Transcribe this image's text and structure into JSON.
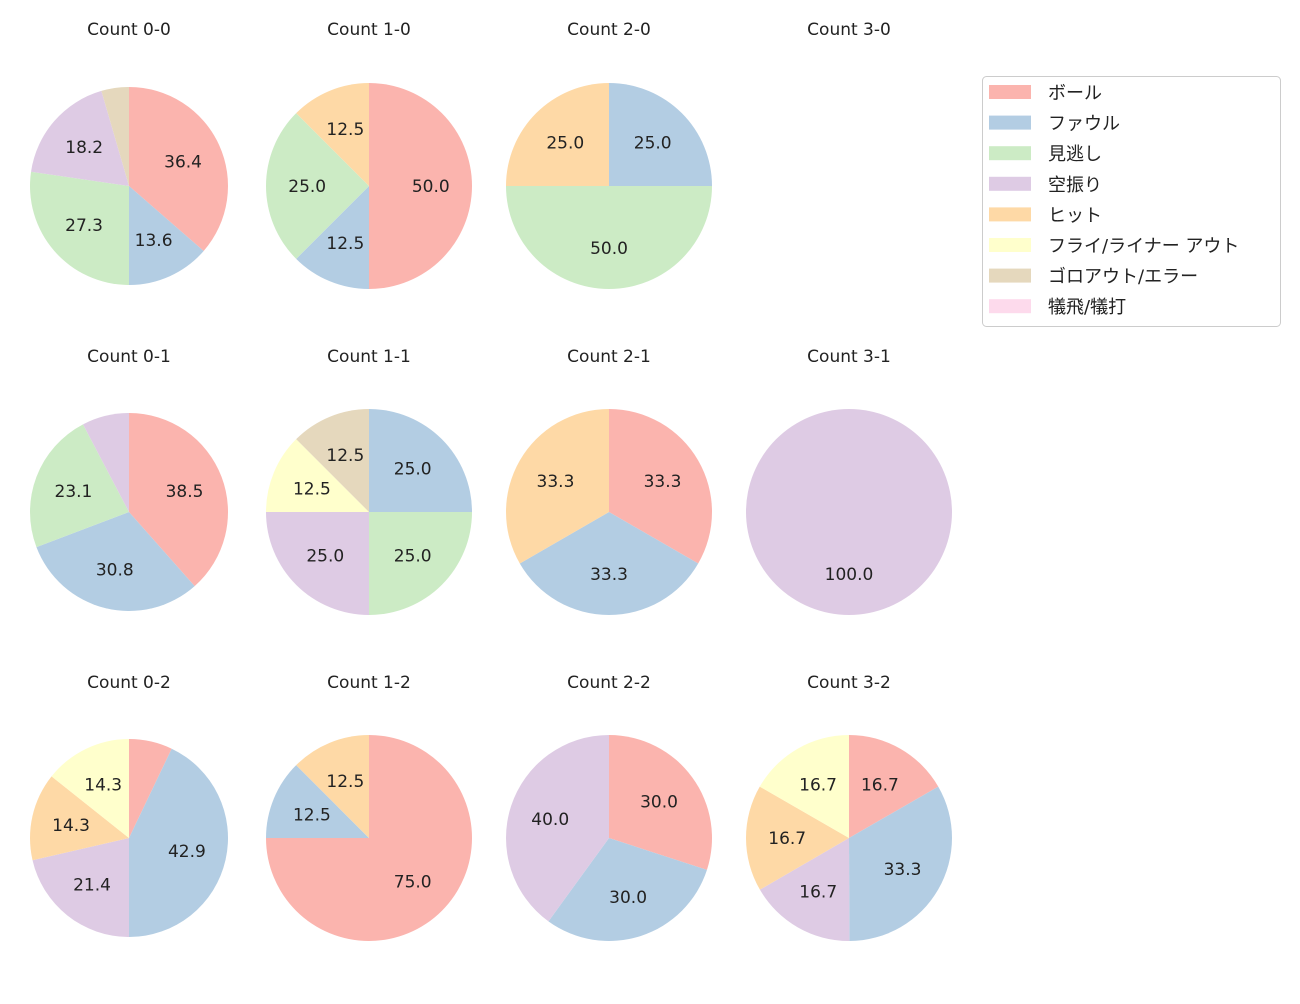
{
  "chart_data": {
    "type": "pie",
    "categories": [
      "ボール",
      "ファウル",
      "見逃し",
      "空振り",
      "ヒット",
      "フライ/ライナー アウト",
      "ゴロアウト/エラー",
      "犠飛/犠打"
    ],
    "colors": [
      "#fbb4ae",
      "#b3cde3",
      "#ccebc5",
      "#decbe4",
      "#fed9a6",
      "#ffffcc",
      "#e5d8bd",
      "#fddaec"
    ],
    "legend_placement": "top-right",
    "start": "top, clockwise",
    "label_threshold_percent": 10,
    "charts": [
      {
        "title": "Count 0-0",
        "values": [
          36.4,
          13.6,
          27.3,
          18.2,
          0,
          0,
          4.5,
          0
        ]
      },
      {
        "title": "Count 1-0",
        "values": [
          50.0,
          12.5,
          25.0,
          0,
          12.5,
          0,
          0,
          0
        ]
      },
      {
        "title": "Count 2-0",
        "values": [
          0,
          25.0,
          50.0,
          0,
          25.0,
          0,
          0,
          0
        ]
      },
      {
        "title": "Count 3-0",
        "values": []
      },
      {
        "title": "Count 0-1",
        "values": [
          38.5,
          30.8,
          23.1,
          7.7,
          0,
          0,
          0,
          0
        ]
      },
      {
        "title": "Count 1-1",
        "values": [
          0,
          25.0,
          25.0,
          25.0,
          0,
          12.5,
          12.5,
          0
        ]
      },
      {
        "title": "Count 2-1",
        "values": [
          33.3,
          33.3,
          0,
          0,
          33.3,
          0,
          0,
          0
        ]
      },
      {
        "title": "Count 3-1",
        "values": [
          0,
          0,
          0,
          100.0,
          0,
          0,
          0,
          0
        ]
      },
      {
        "title": "Count 0-2",
        "values": [
          7.1,
          42.9,
          0,
          21.4,
          14.3,
          14.3,
          0,
          0
        ]
      },
      {
        "title": "Count 1-2",
        "values": [
          75.0,
          12.5,
          0,
          0,
          12.5,
          0,
          0,
          0
        ]
      },
      {
        "title": "Count 2-2",
        "values": [
          30.0,
          30.0,
          0,
          40.0,
          0,
          0,
          0,
          0
        ]
      },
      {
        "title": "Count 3-2",
        "values": [
          16.7,
          33.3,
          0,
          16.7,
          16.7,
          16.7,
          0,
          0
        ]
      }
    ]
  }
}
